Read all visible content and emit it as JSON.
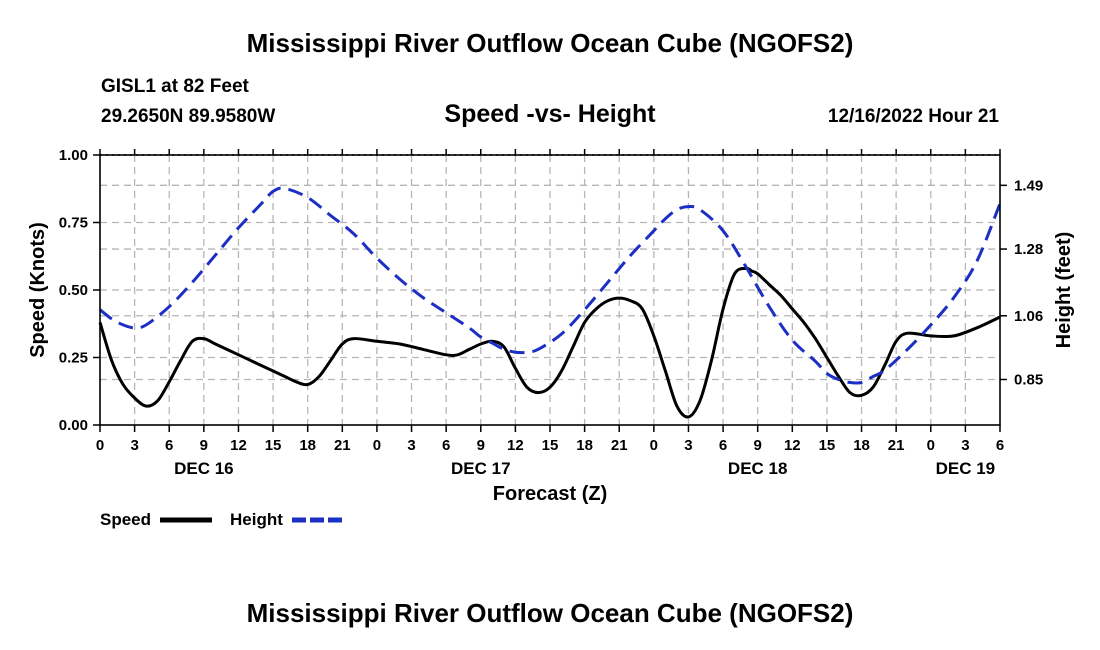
{
  "title": "Mississippi River Outflow Ocean Cube (NGOFS2)",
  "footer_title": "Mississippi River Outflow Ocean Cube (NGOFS2)",
  "station": "GISL1 at 82 Feet",
  "location": "29.2650N  89.9580W",
  "timestamp": "12/16/2022 Hour 21",
  "chart_data": {
    "type": "line",
    "title": "Speed -vs- Height",
    "xlabel": "Forecast (Z)",
    "ylabel": "Speed (Knots)",
    "y2label": "Height (feet)",
    "xlim": [
      0,
      78
    ],
    "ylim": [
      0,
      1.0
    ],
    "y2lim": [
      0.7,
      1.59
    ],
    "x_ticks": [
      0,
      3,
      6,
      9,
      12,
      15,
      18,
      21,
      24,
      27,
      30,
      33,
      36,
      39,
      42,
      45,
      48,
      51,
      54,
      57,
      60,
      63,
      66,
      69,
      72,
      75,
      78
    ],
    "x_tick_labels": [
      "0",
      "3",
      "6",
      "9",
      "12",
      "15",
      "18",
      "21",
      "0",
      "3",
      "6",
      "9",
      "12",
      "15",
      "18",
      "21",
      "0",
      "3",
      "6",
      "9",
      "12",
      "15",
      "18",
      "21",
      "0",
      "3",
      "6"
    ],
    "day_labels": [
      {
        "x": 9,
        "label": "DEC 16"
      },
      {
        "x": 33,
        "label": "DEC 17"
      },
      {
        "x": 57,
        "label": "DEC 18"
      },
      {
        "x": 75,
        "label": "DEC 19"
      }
    ],
    "y_ticks": [
      0.0,
      0.25,
      0.5,
      0.75,
      1.0
    ],
    "y_tick_labels": [
      "0.00",
      "0.25",
      "0.50",
      "0.75",
      "1.00"
    ],
    "y2_ticks": [
      0.85,
      1.06,
      1.28,
      1.49
    ],
    "y2_tick_labels": [
      "0.85",
      "1.06",
      "1.28",
      "1.49"
    ],
    "grid": true,
    "legend": "bottom-left",
    "series": [
      {
        "name": "Speed",
        "axis": "left",
        "color": "#000000",
        "style": "solid",
        "x": [
          0,
          1,
          2,
          3,
          4,
          5,
          6,
          7,
          8,
          9,
          10,
          12,
          14,
          16,
          17,
          18,
          19,
          20,
          21,
          22,
          24,
          26,
          28,
          30,
          31,
          32,
          33,
          34,
          35,
          36,
          37,
          38,
          39,
          40,
          41,
          42,
          43,
          44,
          45,
          46,
          47,
          48,
          49,
          50,
          51,
          52,
          53,
          54,
          55,
          56,
          56.5,
          57,
          58,
          59,
          60,
          61,
          62,
          63,
          64,
          65,
          66,
          67,
          68,
          69,
          70,
          72,
          74,
          76,
          78
        ],
        "values": [
          0.38,
          0.24,
          0.15,
          0.1,
          0.07,
          0.09,
          0.16,
          0.24,
          0.31,
          0.32,
          0.3,
          0.26,
          0.22,
          0.18,
          0.16,
          0.15,
          0.18,
          0.24,
          0.3,
          0.32,
          0.31,
          0.3,
          0.28,
          0.26,
          0.26,
          0.28,
          0.3,
          0.31,
          0.29,
          0.21,
          0.14,
          0.12,
          0.14,
          0.2,
          0.29,
          0.38,
          0.43,
          0.46,
          0.47,
          0.46,
          0.43,
          0.33,
          0.2,
          0.07,
          0.03,
          0.09,
          0.24,
          0.43,
          0.56,
          0.58,
          0.57,
          0.56,
          0.52,
          0.48,
          0.43,
          0.38,
          0.32,
          0.25,
          0.18,
          0.12,
          0.11,
          0.14,
          0.22,
          0.31,
          0.34,
          0.33,
          0.33,
          0.36,
          0.4
        ]
      },
      {
        "name": "Height",
        "axis": "right",
        "color": "#1c2fc4",
        "style": "dashed",
        "x": [
          0,
          1,
          2,
          3,
          4,
          6,
          8,
          10,
          12,
          14,
          15,
          16,
          18,
          20,
          22,
          24,
          26,
          28,
          30,
          32,
          33,
          34,
          35,
          36,
          37,
          38,
          40,
          42,
          44,
          46,
          48,
          49,
          50,
          51,
          52,
          54,
          56,
          58,
          60,
          62,
          63,
          64,
          65,
          66,
          67,
          68,
          70,
          72,
          74,
          76,
          78
        ],
        "values": [
          1.08,
          1.05,
          1.03,
          1.02,
          1.03,
          1.09,
          1.17,
          1.26,
          1.35,
          1.43,
          1.47,
          1.48,
          1.45,
          1.39,
          1.33,
          1.25,
          1.18,
          1.12,
          1.07,
          1.02,
          0.99,
          0.97,
          0.95,
          0.94,
          0.94,
          0.95,
          1.0,
          1.08,
          1.17,
          1.26,
          1.34,
          1.38,
          1.41,
          1.42,
          1.41,
          1.34,
          1.22,
          1.09,
          0.98,
          0.91,
          0.87,
          0.85,
          0.84,
          0.84,
          0.86,
          0.88,
          0.95,
          1.03,
          1.12,
          1.24,
          1.43
        ]
      }
    ]
  }
}
